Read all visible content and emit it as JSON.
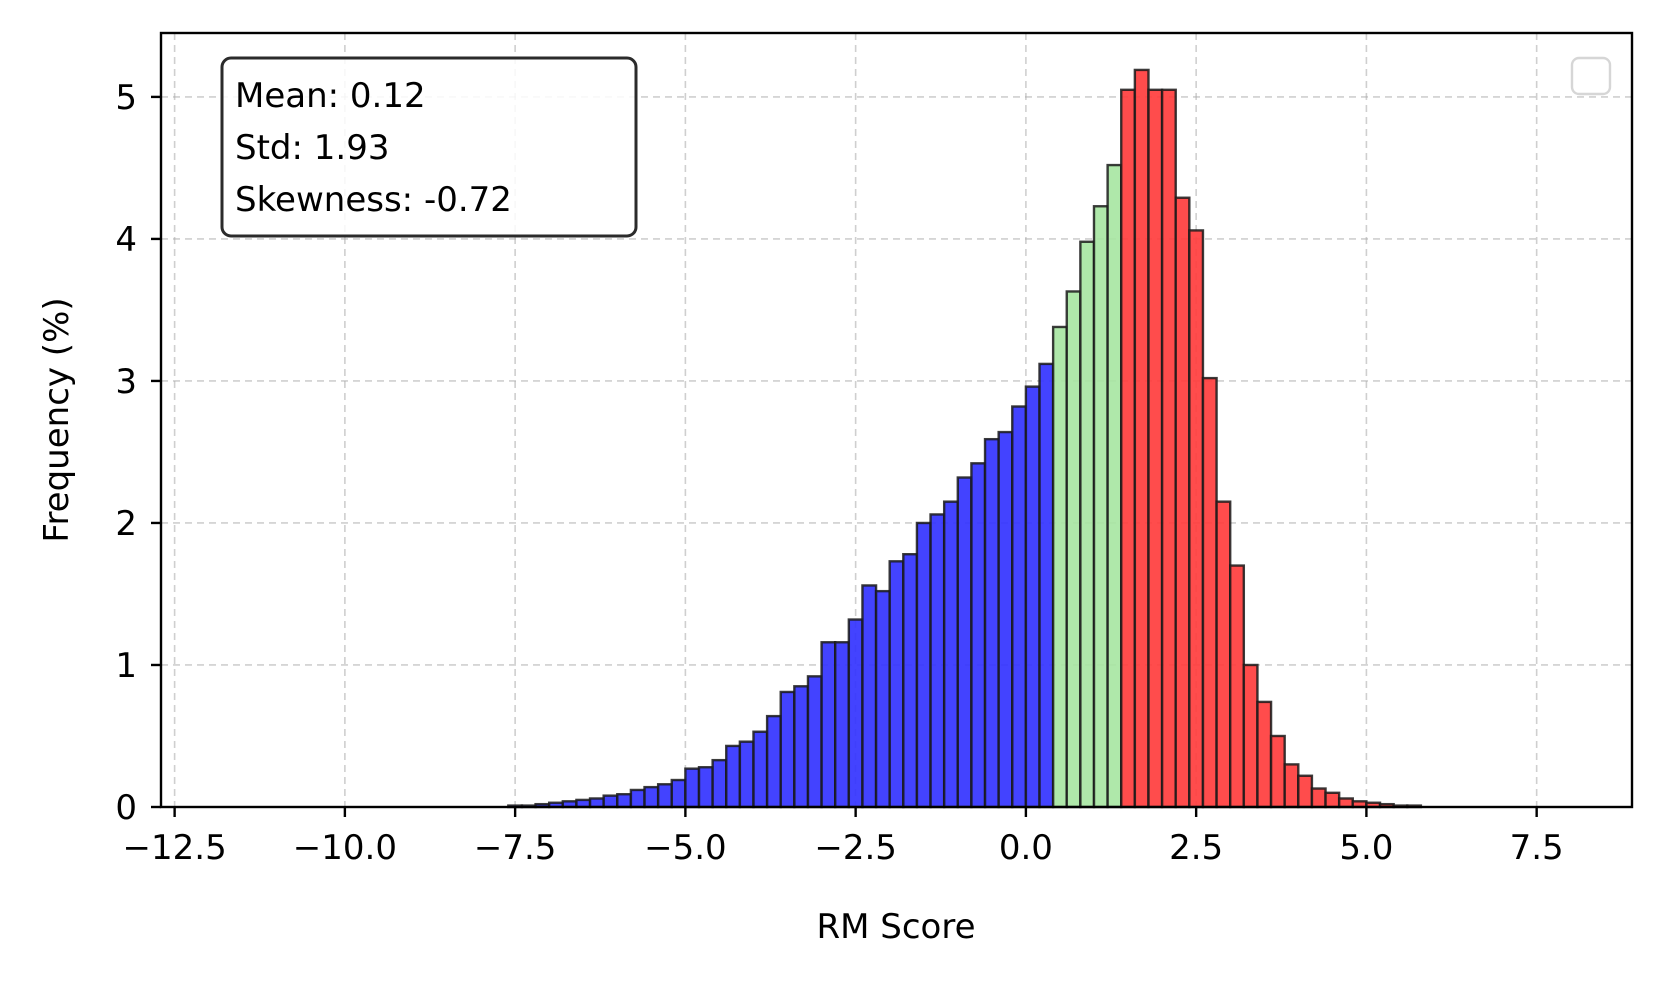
{
  "chart_data": {
    "type": "bar",
    "title": "",
    "xlabel": "RM Score",
    "ylabel": "Frequency (%)",
    "xlim": [
      -12.7,
      8.9
    ],
    "ylim": [
      0,
      5.45
    ],
    "grid": true,
    "legend_placement": "top-right",
    "legend_entries": [],
    "x_ticks": [
      -12.5,
      -10.0,
      -7.5,
      -5.0,
      -2.5,
      0.0,
      2.5,
      5.0,
      7.5
    ],
    "x_tick_labels": [
      "−12.5",
      "−10.0",
      "−7.5",
      "−5.0",
      "−2.5",
      "0.0",
      "2.5",
      "5.0",
      "7.5"
    ],
    "y_ticks": [
      0,
      1,
      2,
      3,
      4,
      5
    ],
    "y_tick_labels": [
      "0",
      "1",
      "2",
      "3",
      "4",
      "5"
    ],
    "annotation": {
      "lines": [
        "Mean: 0.12",
        "Std: 1.93",
        "Skewness: -0.72"
      ],
      "placement": "top-left"
    },
    "colors": {
      "negative": "#3333ff",
      "neutral": "#a8e6a3",
      "positive": "#ff3d3d"
    },
    "bin_width": 0.2,
    "bins": [
      {
        "start": -7.6,
        "value": 0.01,
        "group": "negative"
      },
      {
        "start": -7.4,
        "value": 0.01,
        "group": "negative"
      },
      {
        "start": -7.2,
        "value": 0.02,
        "group": "negative"
      },
      {
        "start": -7.0,
        "value": 0.03,
        "group": "negative"
      },
      {
        "start": -6.8,
        "value": 0.04,
        "group": "negative"
      },
      {
        "start": -6.6,
        "value": 0.05,
        "group": "negative"
      },
      {
        "start": -6.4,
        "value": 0.06,
        "group": "negative"
      },
      {
        "start": -6.2,
        "value": 0.08,
        "group": "negative"
      },
      {
        "start": -6.0,
        "value": 0.09,
        "group": "negative"
      },
      {
        "start": -5.8,
        "value": 0.12,
        "group": "negative"
      },
      {
        "start": -5.6,
        "value": 0.14,
        "group": "negative"
      },
      {
        "start": -5.4,
        "value": 0.16,
        "group": "negative"
      },
      {
        "start": -5.2,
        "value": 0.19,
        "group": "negative"
      },
      {
        "start": -5.0,
        "value": 0.27,
        "group": "negative"
      },
      {
        "start": -4.8,
        "value": 0.28,
        "group": "negative"
      },
      {
        "start": -4.6,
        "value": 0.33,
        "group": "negative"
      },
      {
        "start": -4.4,
        "value": 0.43,
        "group": "negative"
      },
      {
        "start": -4.2,
        "value": 0.46,
        "group": "negative"
      },
      {
        "start": -4.0,
        "value": 0.53,
        "group": "negative"
      },
      {
        "start": -3.8,
        "value": 0.64,
        "group": "negative"
      },
      {
        "start": -3.6,
        "value": 0.81,
        "group": "negative"
      },
      {
        "start": -3.4,
        "value": 0.85,
        "group": "negative"
      },
      {
        "start": -3.2,
        "value": 0.92,
        "group": "negative"
      },
      {
        "start": -3.0,
        "value": 1.16,
        "group": "negative"
      },
      {
        "start": -2.8,
        "value": 1.16,
        "group": "negative"
      },
      {
        "start": -2.6,
        "value": 1.32,
        "group": "negative"
      },
      {
        "start": -2.4,
        "value": 1.56,
        "group": "negative"
      },
      {
        "start": -2.2,
        "value": 1.52,
        "group": "negative"
      },
      {
        "start": -2.0,
        "value": 1.73,
        "group": "negative"
      },
      {
        "start": -1.8,
        "value": 1.78,
        "group": "negative"
      },
      {
        "start": -1.6,
        "value": 2.0,
        "group": "negative"
      },
      {
        "start": -1.4,
        "value": 2.06,
        "group": "negative"
      },
      {
        "start": -1.2,
        "value": 2.15,
        "group": "negative"
      },
      {
        "start": -1.0,
        "value": 2.32,
        "group": "negative"
      },
      {
        "start": -0.8,
        "value": 2.42,
        "group": "negative"
      },
      {
        "start": -0.6,
        "value": 2.59,
        "group": "negative"
      },
      {
        "start": -0.4,
        "value": 2.64,
        "group": "negative"
      },
      {
        "start": -0.2,
        "value": 2.82,
        "group": "negative"
      },
      {
        "start": 0.0,
        "value": 2.96,
        "group": "negative"
      },
      {
        "start": 0.2,
        "value": 3.12,
        "group": "negative"
      },
      {
        "start": 0.4,
        "value": 3.38,
        "group": "neutral"
      },
      {
        "start": 0.6,
        "value": 3.63,
        "group": "neutral"
      },
      {
        "start": 0.8,
        "value": 3.98,
        "group": "neutral"
      },
      {
        "start": 1.0,
        "value": 4.23,
        "group": "neutral"
      },
      {
        "start": 1.2,
        "value": 4.52,
        "group": "neutral"
      },
      {
        "start": 1.4,
        "value": 5.05,
        "group": "positive"
      },
      {
        "start": 1.6,
        "value": 5.19,
        "group": "positive"
      },
      {
        "start": 1.8,
        "value": 5.05,
        "group": "positive"
      },
      {
        "start": 2.0,
        "value": 5.05,
        "group": "positive"
      },
      {
        "start": 2.2,
        "value": 4.29,
        "group": "positive"
      },
      {
        "start": 2.4,
        "value": 4.06,
        "group": "positive"
      },
      {
        "start": 2.6,
        "value": 3.02,
        "group": "positive"
      },
      {
        "start": 2.8,
        "value": 2.15,
        "group": "positive"
      },
      {
        "start": 3.0,
        "value": 1.7,
        "group": "positive"
      },
      {
        "start": 3.2,
        "value": 1.0,
        "group": "positive"
      },
      {
        "start": 3.4,
        "value": 0.74,
        "group": "positive"
      },
      {
        "start": 3.6,
        "value": 0.5,
        "group": "positive"
      },
      {
        "start": 3.8,
        "value": 0.3,
        "group": "positive"
      },
      {
        "start": 4.0,
        "value": 0.22,
        "group": "positive"
      },
      {
        "start": 4.2,
        "value": 0.13,
        "group": "positive"
      },
      {
        "start": 4.4,
        "value": 0.1,
        "group": "positive"
      },
      {
        "start": 4.6,
        "value": 0.06,
        "group": "positive"
      },
      {
        "start": 4.8,
        "value": 0.04,
        "group": "positive"
      },
      {
        "start": 5.0,
        "value": 0.03,
        "group": "positive"
      },
      {
        "start": 5.2,
        "value": 0.02,
        "group": "positive"
      },
      {
        "start": 5.4,
        "value": 0.01,
        "group": "positive"
      },
      {
        "start": 5.6,
        "value": 0.01,
        "group": "positive"
      }
    ]
  }
}
